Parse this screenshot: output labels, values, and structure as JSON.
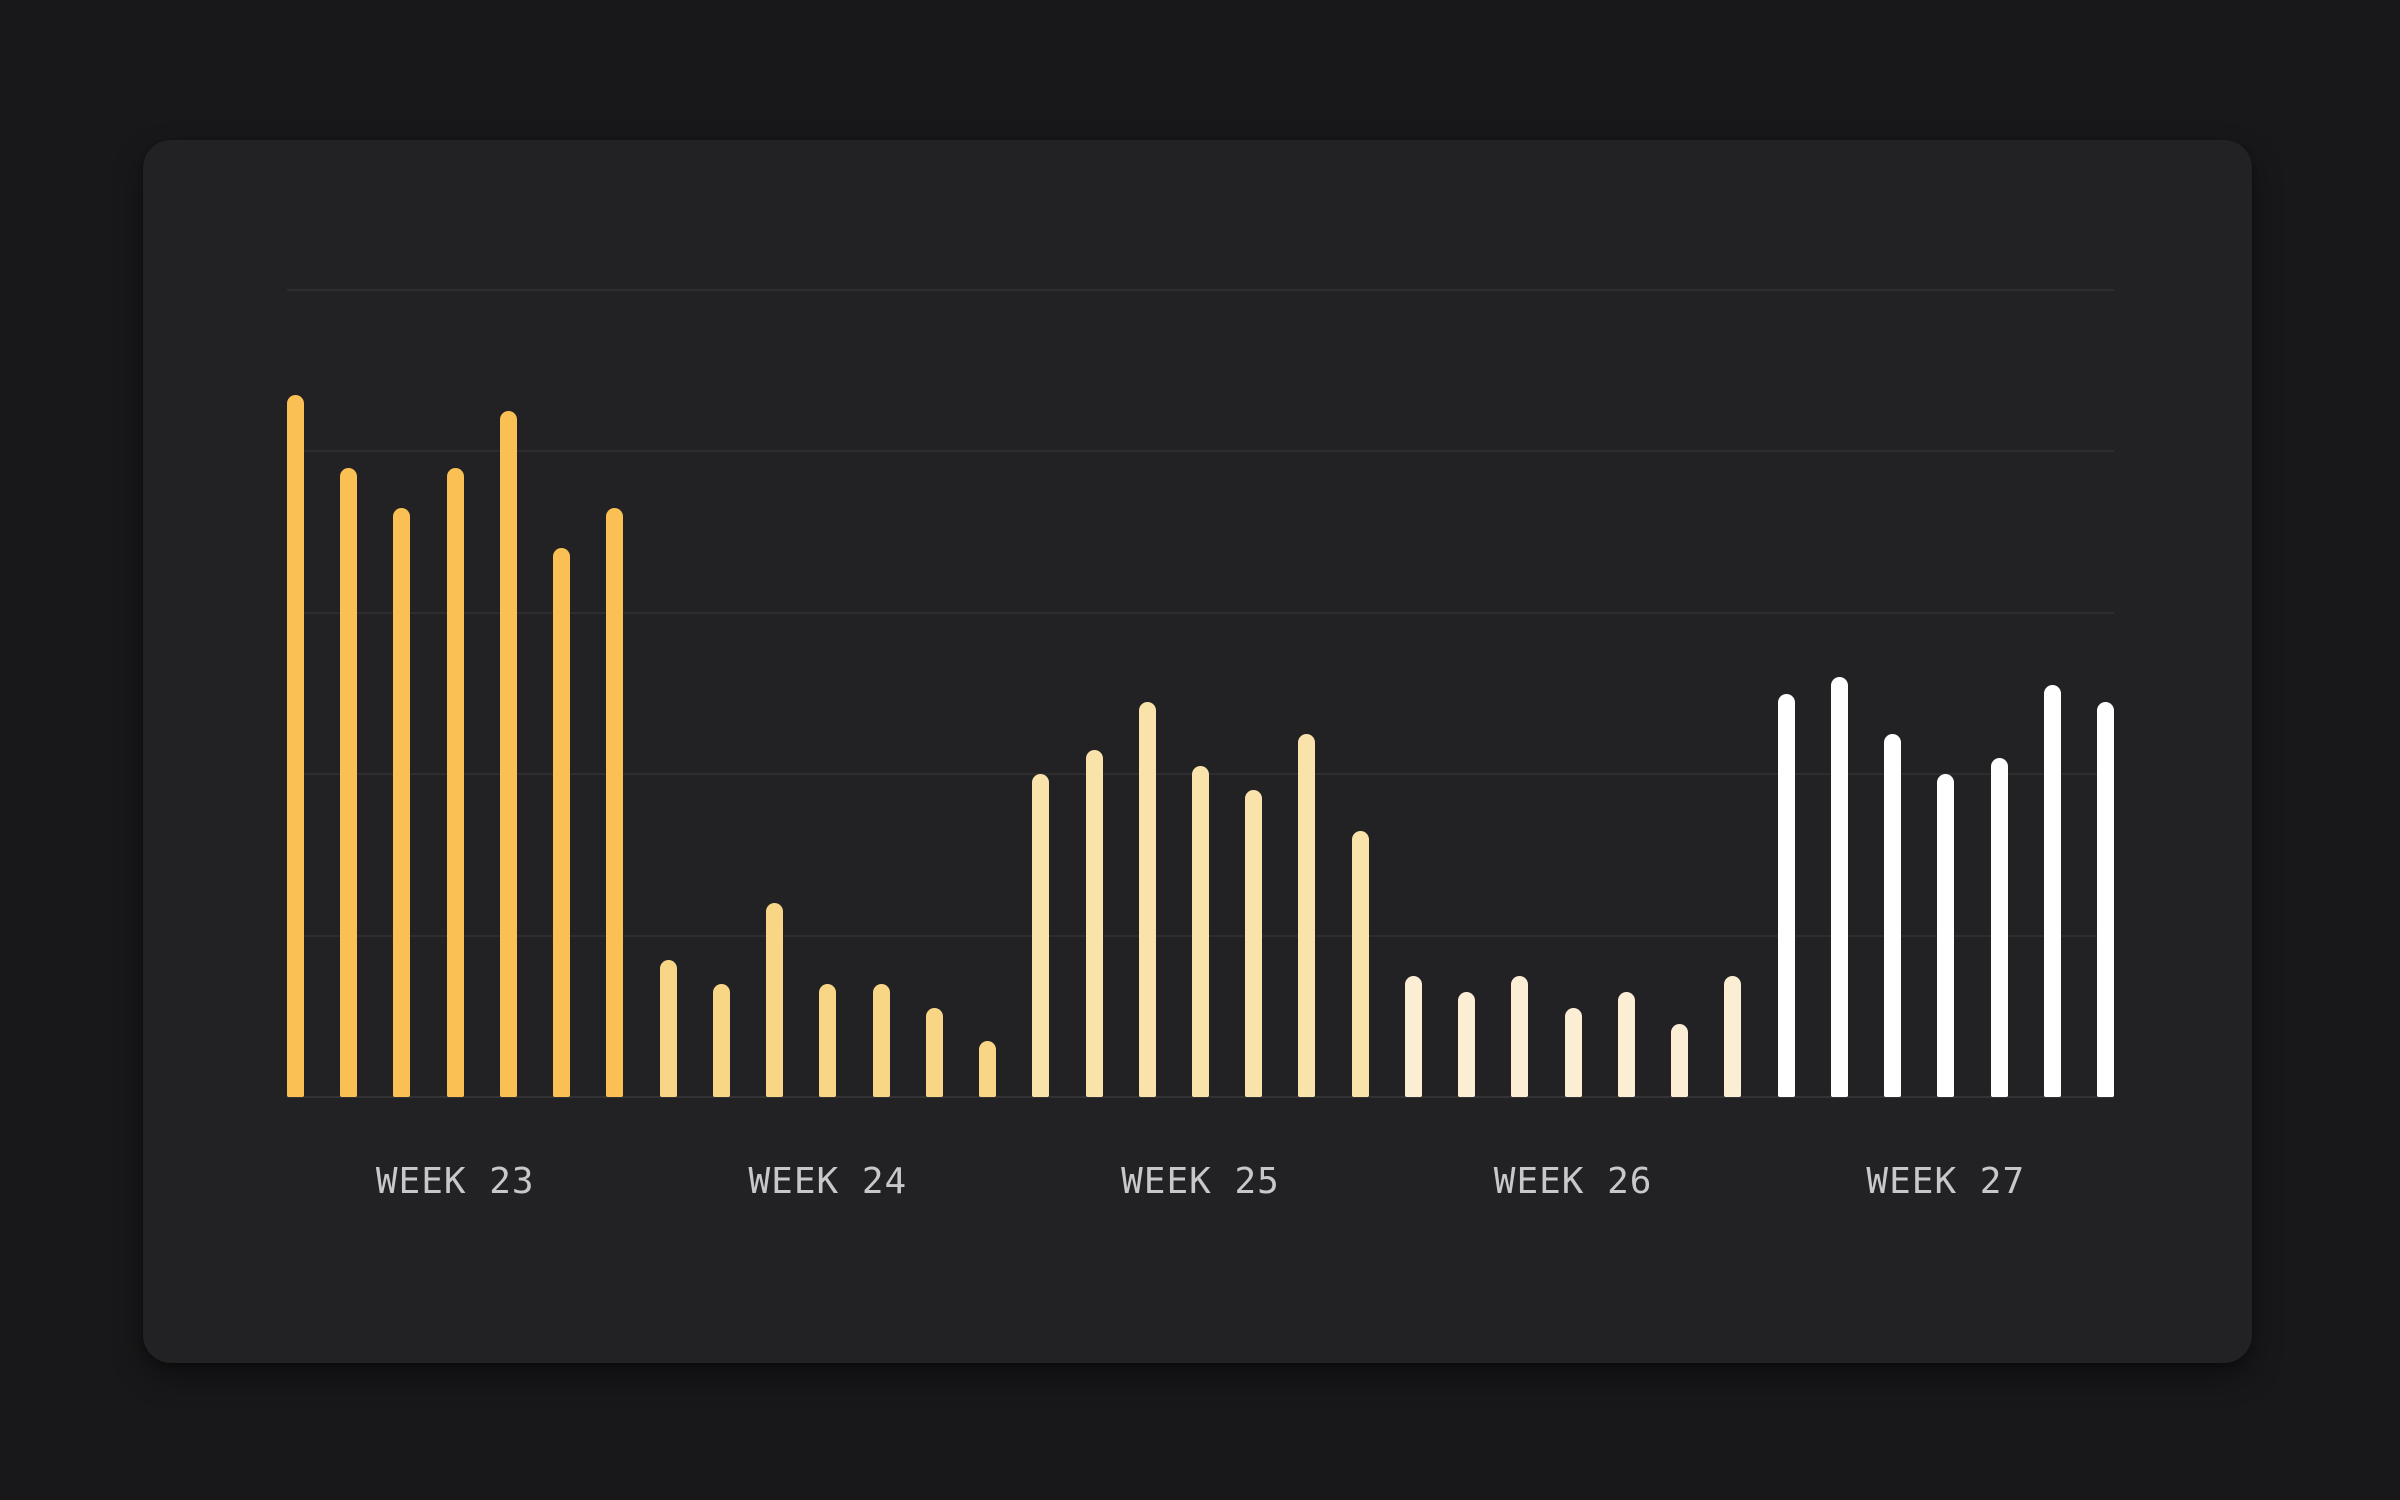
{
  "chart_data": {
    "type": "bar",
    "title": "",
    "xlabel": "",
    "ylabel": "",
    "ylim": [
      0,
      100
    ],
    "y_gridlines": [
      0,
      20,
      40,
      60,
      80,
      100
    ],
    "grid": "horizontal",
    "legend": "none",
    "bars_per_group": 7,
    "categories": [
      "WEEK 23",
      "WEEK 24",
      "WEEK 25",
      "WEEK 26",
      "WEEK 27"
    ],
    "series": [
      {
        "name": "WEEK 23",
        "color": "#FBC054",
        "values": [
          87,
          78,
          73,
          78,
          85,
          68,
          73
        ]
      },
      {
        "name": "WEEK 24",
        "color": "#F9D586",
        "values": [
          17,
          14,
          24,
          14,
          14,
          11,
          7
        ]
      },
      {
        "name": "WEEK 25",
        "color": "#FAE2AB",
        "values": [
          40,
          43,
          49,
          41,
          38,
          45,
          33
        ]
      },
      {
        "name": "WEEK 26",
        "color": "#FBEED4",
        "values": [
          15,
          13,
          15,
          11,
          13,
          9,
          15
        ]
      },
      {
        "name": "WEEK 27",
        "color": "#FFFFFF",
        "values": [
          50,
          52,
          45,
          40,
          42,
          51,
          49
        ]
      }
    ]
  },
  "colors": {
    "page_background": "#18181a",
    "card_background": "#222225",
    "grid_line": "rgba(255,255,255,0.05)",
    "axis_line": "rgba(255,255,255,0.08)",
    "label_text": "#c8c8cb"
  }
}
